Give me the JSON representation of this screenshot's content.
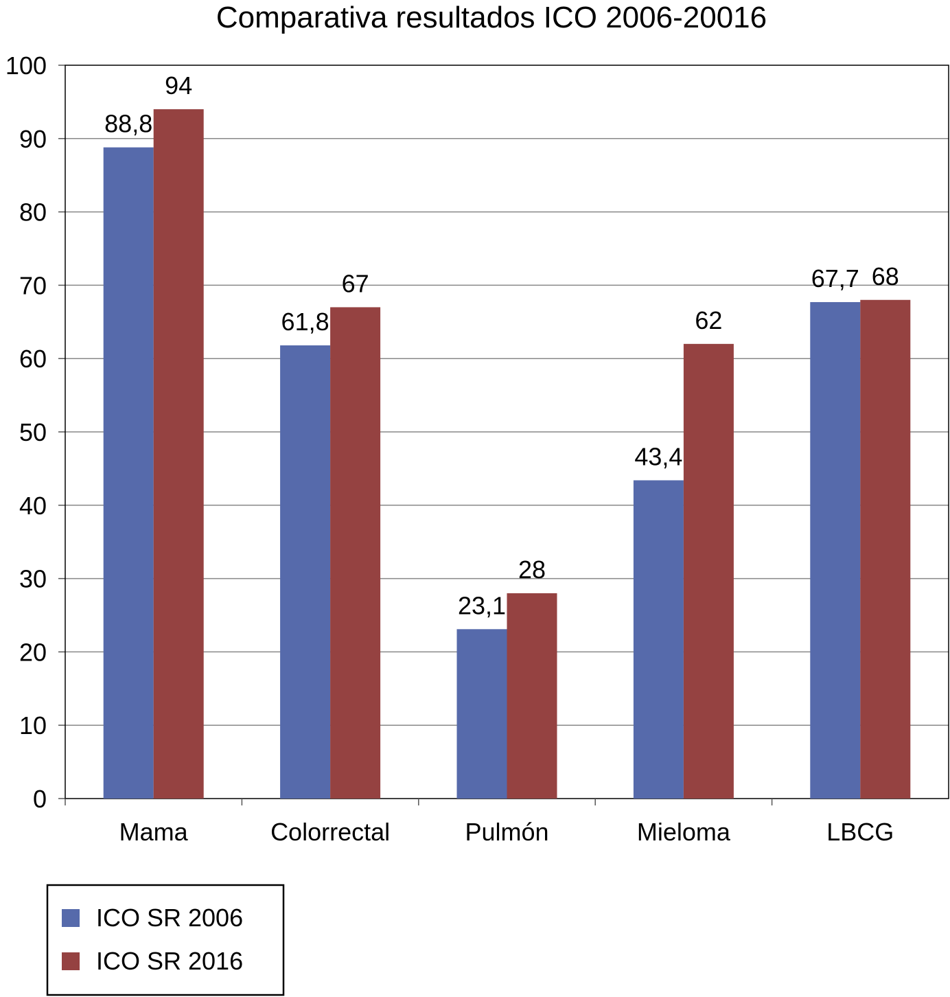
{
  "chart_data": {
    "type": "bar",
    "title": "Comparativa resultados ICO 2006-20016",
    "xlabel": "",
    "ylabel": "",
    "ylim": [
      0,
      100
    ],
    "yticks": [
      0,
      10,
      20,
      30,
      40,
      50,
      60,
      70,
      80,
      90,
      100
    ],
    "grid": true,
    "legend_position": "bottom-left",
    "categories": [
      "Mama",
      "Colorrectal",
      "Pulmón",
      "Mieloma",
      "LBCG"
    ],
    "series": [
      {
        "name": "ICO SR 2006",
        "color": "#566aab",
        "values": [
          88.8,
          61.8,
          23.1,
          43.4,
          67.7
        ],
        "labels": [
          "88,8",
          "61,8",
          "23,1",
          "43,4",
          "67,7"
        ]
      },
      {
        "name": "ICO SR 2016",
        "color": "#954241",
        "values": [
          94,
          67,
          28,
          62,
          68
        ],
        "labels": [
          "94",
          "67",
          "28",
          "62",
          "68"
        ]
      }
    ]
  }
}
